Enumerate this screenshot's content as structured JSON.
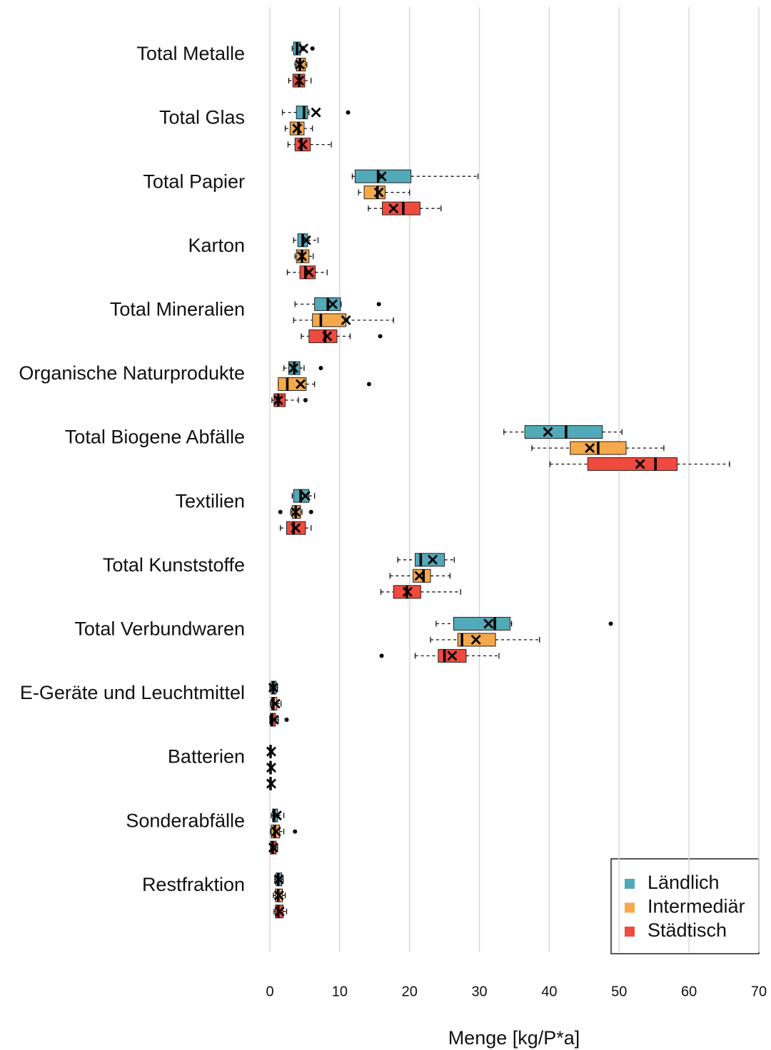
{
  "chart_data": {
    "type": "boxplot",
    "orientation": "horizontal",
    "x_label": "Menge [kg/P*a]",
    "xlim": [
      0,
      70
    ],
    "xticks": [
      0,
      10,
      20,
      30,
      40,
      50,
      60,
      70
    ],
    "grid": true,
    "legend": "lower right",
    "categories": [
      "Total Metalle",
      "Total Glas",
      "Total Papier",
      "Karton",
      "Total Mineralien",
      "Organische Naturprodukte",
      "Total Biogene Abfälle",
      "Textilien",
      "Total Kunststoffe",
      "Total Verbundwaren",
      "E-Geräte und Leuchtmittel",
      "Batterien",
      "Sonderabfälle",
      "Restfraktion"
    ],
    "series": [
      {
        "name": "Ländlich",
        "color": "#52a9b8",
        "boxes": [
          {
            "min": 3.2,
            "q1": 3.4,
            "median": 3.9,
            "q3": 4.4,
            "max": 4.8,
            "mean": 4.8,
            "outliers": [
              6.1
            ]
          },
          {
            "min": 1.8,
            "q1": 3.8,
            "median": 4.9,
            "q3": 5.4,
            "max": 5.6,
            "mean": 6.6,
            "outliers": [
              11.2
            ]
          },
          {
            "min": 11.8,
            "q1": 12.2,
            "median": 15.5,
            "q3": 20.2,
            "max": 29.8,
            "mean": 16.0,
            "outliers": []
          },
          {
            "min": 3.4,
            "q1": 4.0,
            "median": 4.7,
            "q3": 5.4,
            "max": 6.9,
            "mean": 5.2,
            "outliers": []
          },
          {
            "min": 3.6,
            "q1": 6.4,
            "median": 8.3,
            "q3": 10.1,
            "max": 10.2,
            "mean": 9.0,
            "outliers": [
              15.6
            ]
          },
          {
            "min": 2.0,
            "q1": 2.7,
            "median": 3.5,
            "q3": 4.3,
            "max": 4.9,
            "mean": 3.4,
            "outliers": [
              7.3
            ]
          },
          {
            "min": 33.5,
            "q1": 36.5,
            "median": 42.4,
            "q3": 47.6,
            "max": 50.4,
            "mean": 39.8,
            "outliers": []
          },
          {
            "min": 3.2,
            "q1": 3.4,
            "median": 4.4,
            "q3": 5.6,
            "max": 6.4,
            "mean": 5.1,
            "outliers": []
          },
          {
            "min": 18.3,
            "q1": 20.8,
            "median": 21.6,
            "q3": 25.0,
            "max": 26.4,
            "mean": 23.3,
            "outliers": []
          },
          {
            "min": 23.8,
            "q1": 26.3,
            "median": 32.2,
            "q3": 34.4,
            "max": 34.6,
            "mean": 31.3,
            "outliers": [
              48.8
            ]
          },
          {
            "min": 0,
            "q1": 0.2,
            "median": 0.5,
            "q3": 0.9,
            "max": 1.1,
            "mean": 0.5,
            "outliers": []
          },
          {
            "min": 0,
            "q1": 0.05,
            "median": 0.1,
            "q3": 0.2,
            "max": 0.4,
            "mean": 0.2,
            "outliers": []
          },
          {
            "min": 0.2,
            "q1": 0.4,
            "median": 0.6,
            "q3": 1.1,
            "max": 2.0,
            "mean": 1.0,
            "outliers": []
          },
          {
            "min": 0.7,
            "q1": 0.9,
            "median": 1.2,
            "q3": 1.7,
            "max": 1.9,
            "mean": 1.3,
            "outliers": []
          }
        ]
      },
      {
        "name": "Intermediär",
        "color": "#f5a94a",
        "boxes": [
          {
            "min": 3.6,
            "q1": 3.8,
            "median": 4.3,
            "q3": 5.1,
            "max": 5.3,
            "mean": 4.3,
            "outliers": []
          },
          {
            "min": 2.2,
            "q1": 2.9,
            "median": 4.1,
            "q3": 4.9,
            "max": 6.1,
            "mean": 3.9,
            "outliers": []
          },
          {
            "min": 12.7,
            "q1": 13.5,
            "median": 15.4,
            "q3": 16.5,
            "max": 20.0,
            "mean": 15.6,
            "outliers": []
          },
          {
            "min": 3.6,
            "q1": 3.8,
            "median": 4.6,
            "q3": 5.6,
            "max": 6.2,
            "mean": 4.6,
            "outliers": []
          },
          {
            "min": 3.4,
            "q1": 6.1,
            "median": 7.3,
            "q3": 10.9,
            "max": 17.7,
            "mean": 10.9,
            "outliers": []
          },
          {
            "min": 1.2,
            "q1": 1.2,
            "median": 2.5,
            "q3": 5.2,
            "max": 6.4,
            "mean": 4.4,
            "outliers": [
              14.2
            ]
          },
          {
            "min": 37.5,
            "q1": 43.0,
            "median": 47.0,
            "q3": 51.0,
            "max": 56.4,
            "mean": 45.8,
            "outliers": []
          },
          {
            "min": 3.0,
            "q1": 3.2,
            "median": 3.7,
            "q3": 4.4,
            "max": 4.6,
            "mean": 3.7,
            "outliers": [
              1.5,
              5.9
            ]
          },
          {
            "min": 17.2,
            "q1": 20.5,
            "median": 22.0,
            "q3": 23.0,
            "max": 25.8,
            "mean": 21.4,
            "outliers": []
          },
          {
            "min": 23.0,
            "q1": 26.9,
            "median": 27.5,
            "q3": 32.3,
            "max": 38.6,
            "mean": 29.5,
            "outliers": []
          },
          {
            "min": 0.1,
            "q1": 0.2,
            "median": 0.5,
            "q3": 1.0,
            "max": 1.6,
            "mean": 0.8,
            "outliers": []
          },
          {
            "min": 0,
            "q1": 0.05,
            "median": 0.1,
            "q3": 0.2,
            "max": 0.4,
            "mean": 0.2,
            "outliers": []
          },
          {
            "min": 0.1,
            "q1": 0.2,
            "median": 0.7,
            "q3": 1.4,
            "max": 2.0,
            "mean": 0.9,
            "outliers": [
              3.6
            ]
          },
          {
            "min": 0.5,
            "q1": 0.8,
            "median": 1.2,
            "q3": 1.8,
            "max": 2.2,
            "mean": 1.3,
            "outliers": []
          }
        ]
      },
      {
        "name": "Städtisch",
        "color": "#f04a3e",
        "boxes": [
          {
            "min": 2.7,
            "q1": 3.3,
            "median": 4.2,
            "q3": 5.0,
            "max": 5.9,
            "mean": 4.2,
            "outliers": []
          },
          {
            "min": 2.6,
            "q1": 3.6,
            "median": 4.5,
            "q3": 5.8,
            "max": 8.8,
            "mean": 4.7,
            "outliers": []
          },
          {
            "min": 14.1,
            "q1": 16.1,
            "median": 19.1,
            "q3": 21.5,
            "max": 24.5,
            "mean": 17.7,
            "outliers": []
          },
          {
            "min": 2.5,
            "q1": 4.3,
            "median": 5.1,
            "q3": 6.5,
            "max": 8.2,
            "mean": 5.6,
            "outliers": []
          },
          {
            "min": 4.5,
            "q1": 5.6,
            "median": 7.9,
            "q3": 9.6,
            "max": 11.5,
            "mean": 8.2,
            "outliers": [
              15.8
            ]
          },
          {
            "min": 0.3,
            "q1": 0.6,
            "median": 1.2,
            "q3": 2.2,
            "max": 4.1,
            "mean": 1.2,
            "outliers": [
              5.1
            ]
          },
          {
            "min": 40.1,
            "q1": 45.5,
            "median": 55.2,
            "q3": 58.3,
            "max": 65.8,
            "mean": 53.0,
            "outliers": []
          },
          {
            "min": 1.5,
            "q1": 2.4,
            "median": 3.4,
            "q3": 5.1,
            "max": 5.9,
            "mean": 3.7,
            "outliers": []
          },
          {
            "min": 15.9,
            "q1": 17.7,
            "median": 19.6,
            "q3": 21.6,
            "max": 27.3,
            "mean": 19.7,
            "outliers": []
          },
          {
            "min": 20.8,
            "q1": 24.1,
            "median": 25.0,
            "q3": 28.1,
            "max": 32.8,
            "mean": 26.1,
            "outliers": [
              16.0
            ]
          },
          {
            "min": 0,
            "q1": 0.1,
            "median": 0.3,
            "q3": 0.8,
            "max": 1.2,
            "mean": 0.6,
            "outliers": [
              2.4
            ]
          },
          {
            "min": 0,
            "q1": 0.05,
            "median": 0.1,
            "q3": 0.2,
            "max": 0.4,
            "mean": 0.2,
            "outliers": []
          },
          {
            "min": 0.1,
            "q1": 0.1,
            "median": 0.4,
            "q3": 0.9,
            "max": 1.1,
            "mean": 0.5,
            "outliers": []
          },
          {
            "min": 0.6,
            "q1": 0.8,
            "median": 1.2,
            "q3": 1.9,
            "max": 2.4,
            "mean": 1.4,
            "outliers": []
          }
        ]
      }
    ]
  }
}
